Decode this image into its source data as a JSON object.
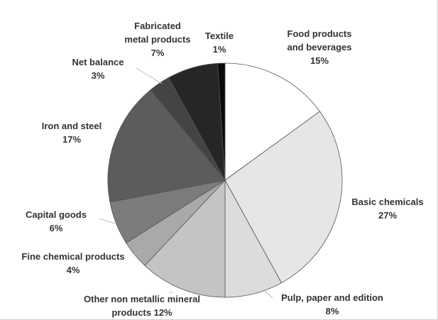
{
  "chart_data": {
    "type": "pie",
    "title": "",
    "start_angle_deg": 0,
    "direction": "clockwise",
    "slices": [
      {
        "name_lines": [
          "Food products",
          "and beverages"
        ],
        "pct_label": "15%",
        "value": 15,
        "color": "#ffffff"
      },
      {
        "name_lines": [
          "Basic chemicals"
        ],
        "pct_label": "27%",
        "value": 27,
        "color": "#e6e6e6"
      },
      {
        "name_lines": [
          "Pulp, paper and edition"
        ],
        "pct_label": "8%",
        "value": 8,
        "color": "#dcdcdc"
      },
      {
        "name_lines": [
          "Other non metallic mineral",
          "products 12%"
        ],
        "pct_label": "",
        "value": 12,
        "color": "#c4c4c4"
      },
      {
        "name_lines": [
          "Fine chemical products"
        ],
        "pct_label": "4%",
        "value": 4,
        "color": "#a9a9a9"
      },
      {
        "name_lines": [
          "Capital goods"
        ],
        "pct_label": "6%",
        "value": 6,
        "color": "#7c7c7c"
      },
      {
        "name_lines": [
          "Iron and steel"
        ],
        "pct_label": "17%",
        "value": 17,
        "color": "#5c5c5c"
      },
      {
        "name_lines": [
          "Net balance"
        ],
        "pct_label": "3%",
        "value": 3,
        "color": "#444444"
      },
      {
        "name_lines": [
          "Fabricated",
          "metal products"
        ],
        "pct_label": "7%",
        "value": 7,
        "color": "#262626"
      },
      {
        "name_lines": [
          "Textile"
        ],
        "pct_label": "1%",
        "value": 1,
        "color": "#0a0a0a"
      }
    ]
  }
}
